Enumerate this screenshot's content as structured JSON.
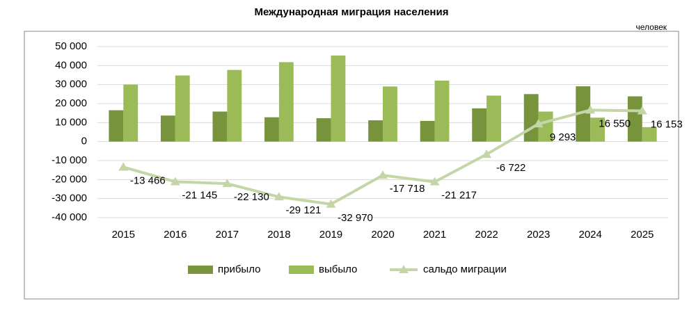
{
  "chart_data": {
    "type": "bar",
    "title": "Международная миграция населения",
    "unit_label": "человек",
    "categories": [
      "2015",
      "2016",
      "2017",
      "2018",
      "2019",
      "2020",
      "2021",
      "2022",
      "2023",
      "2024",
      "2025"
    ],
    "series": [
      {
        "name": "прибыло",
        "color": "#77933c",
        "values": [
          16500,
          13700,
          15800,
          12800,
          12300,
          11200,
          10900,
          17500,
          25000,
          29100,
          23800
        ]
      },
      {
        "name": "выбыло",
        "color": "#9bbb59",
        "values": [
          30000,
          34800,
          37700,
          41800,
          45300,
          29000,
          32100,
          24200,
          15800,
          12600,
          7600
        ]
      },
      {
        "name": "сальдо миграции",
        "type": "line",
        "color": "#c4d6a8",
        "values": [
          -13466,
          -21145,
          -22130,
          -29121,
          -32970,
          -17718,
          -21217,
          -6722,
          9293,
          16550,
          16153
        ],
        "value_labels": [
          "-13 466",
          "-21 145",
          "-22 130",
          "-29 121",
          "-32 970",
          "-17 718",
          "-21 217",
          "-6 722",
          "9 293",
          "16 550",
          "16 153"
        ]
      }
    ],
    "ylim": [
      -40000,
      50000
    ],
    "yticks": [
      {
        "value": -40000,
        "label": "-40 000"
      },
      {
        "value": -30000,
        "label": "-30 000"
      },
      {
        "value": -20000,
        "label": "-20 000"
      },
      {
        "value": -10000,
        "label": "-10 000"
      },
      0,
      {
        "value": 10000,
        "label": "10 000"
      },
      {
        "value": 20000,
        "label": "20 000"
      },
      {
        "value": 30000,
        "label": "30 000"
      },
      {
        "value": 40000,
        "label": "40 000"
      },
      {
        "value": 50000,
        "label": "50 000"
      }
    ],
    "grid": true,
    "legend": "bottom"
  }
}
